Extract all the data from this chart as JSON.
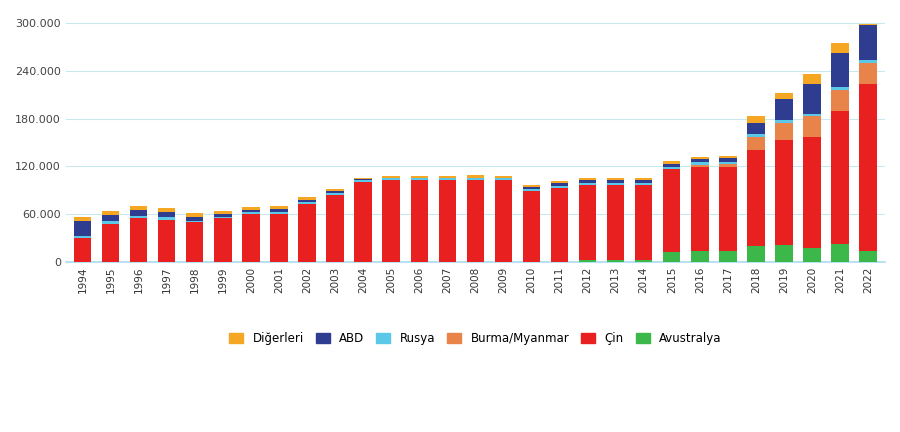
{
  "years": [
    1994,
    1995,
    1996,
    1997,
    1998,
    1999,
    2000,
    2001,
    2002,
    2003,
    2004,
    2005,
    2006,
    2007,
    2008,
    2009,
    2010,
    2011,
    2012,
    2013,
    2014,
    2015,
    2016,
    2017,
    2018,
    2019,
    2020,
    2021,
    2022
  ],
  "cin": [
    30000,
    48000,
    55000,
    53000,
    50000,
    55000,
    60000,
    60000,
    73000,
    84000,
    100000,
    103000,
    103000,
    103000,
    103000,
    103000,
    89000,
    93000,
    95000,
    95000,
    95000,
    105000,
    105000,
    105000,
    120000,
    132000,
    140000,
    168000,
    210000
  ],
  "avustralya": [
    0,
    0,
    0,
    0,
    0,
    0,
    0,
    0,
    0,
    0,
    0,
    0,
    0,
    0,
    0,
    0,
    0,
    0,
    2000,
    2000,
    2000,
    12000,
    14000,
    14000,
    20000,
    21000,
    17000,
    22000,
    14000
  ],
  "burma": [
    0,
    0,
    0,
    0,
    0,
    0,
    0,
    0,
    0,
    0,
    0,
    0,
    0,
    0,
    0,
    0,
    0,
    0,
    0,
    0,
    0,
    0,
    3000,
    4000,
    17000,
    22000,
    26000,
    26000,
    26000
  ],
  "rusya": [
    2000,
    3000,
    3000,
    3000,
    2000,
    2000,
    2500,
    2500,
    2500,
    2500,
    2500,
    2500,
    2500,
    2500,
    2500,
    2500,
    2500,
    2500,
    2500,
    2500,
    2500,
    2500,
    3000,
    3000,
    3000,
    3000,
    2700,
    3500,
    4000
  ],
  "abd": [
    20000,
    8000,
    7000,
    7000,
    5000,
    3000,
    3000,
    3500,
    2500,
    2000,
    1000,
    500,
    500,
    500,
    500,
    500,
    2500,
    3500,
    3500,
    3500,
    3500,
    4000,
    4500,
    4500,
    15000,
    26000,
    38000,
    43000,
    43000
  ],
  "digerleri": [
    5000,
    5000,
    5000,
    5000,
    4000,
    4000,
    4000,
    4000,
    3000,
    2500,
    2000,
    2000,
    2000,
    2500,
    3000,
    2500,
    2500,
    2500,
    2500,
    2500,
    2000,
    3000,
    2500,
    3000,
    8000,
    8000,
    12000,
    12000,
    2000
  ],
  "colors": {
    "digerleri": "#F5A623",
    "abd": "#2E3D8F",
    "rusya": "#5BC8E8",
    "burma": "#E8834A",
    "cin": "#E82020",
    "avustralya": "#3CB84A"
  },
  "legend_labels": [
    "Diğerleri",
    "ABD",
    "Rusya",
    "Burma/Myanmar",
    "Çin",
    "Avustralya"
  ],
  "yticks": [
    0,
    60000,
    120000,
    180000,
    240000,
    300000
  ],
  "ylim": [
    0,
    310000
  ],
  "background_color": "#ffffff",
  "grid_color": "#c8e8f0"
}
